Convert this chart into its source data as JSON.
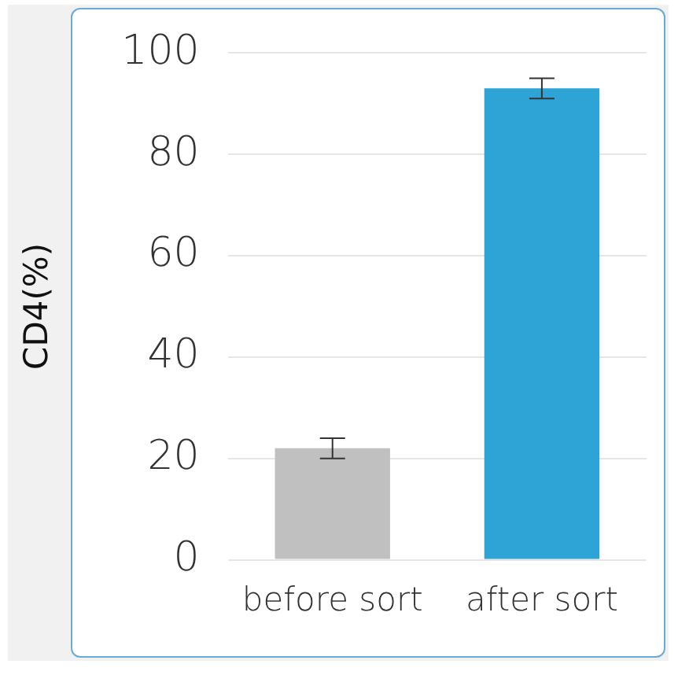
{
  "chart_data": {
    "type": "bar",
    "ylabel": "CD4(%)",
    "categories": [
      "before sort",
      "after sort"
    ],
    "values": [
      22,
      93
    ],
    "colors": [
      "#c0c0c0",
      "#2ea3d6"
    ],
    "errors": [
      2,
      2
    ],
    "ylim": [
      0,
      100
    ],
    "yticks": [
      0,
      20,
      40,
      60,
      80,
      100
    ],
    "grid": "y",
    "legend": false
  }
}
